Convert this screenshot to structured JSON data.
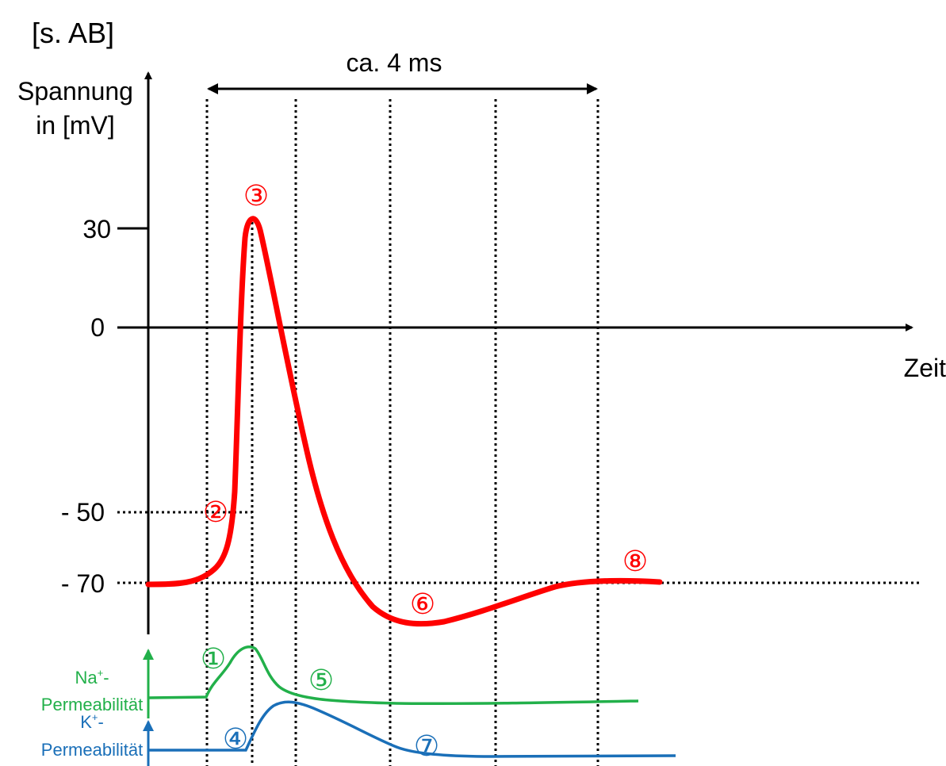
{
  "header": {
    "text": "[s. AB]"
  },
  "duration_label": "ca. 4 ms",
  "y_axis": {
    "label_line1": "Spannung",
    "label_line2": "in [mV]"
  },
  "x_axis": {
    "label": "Zeit"
  },
  "ticks": {
    "t30": "30",
    "t0": "0",
    "tm50": "- 50",
    "tm70": "- 70"
  },
  "markers": {
    "m1": "①",
    "m2": "②",
    "m3": "③",
    "m4": "④",
    "m5": "⑤",
    "m6": "⑥",
    "m7": "⑦",
    "m8": "⑧"
  },
  "na_label": {
    "base": "Na",
    "sup": "+",
    "dash": "-",
    "line2": "Permeabilität"
  },
  "k_label": {
    "base": "K",
    "sup": "+",
    "dash": "-",
    "line2": "Permeabilität"
  },
  "colors": {
    "potential": "#ff0000",
    "na_permeability": "#22b04a",
    "k_permeability": "#1a6fb8",
    "axes": "#000000"
  }
}
